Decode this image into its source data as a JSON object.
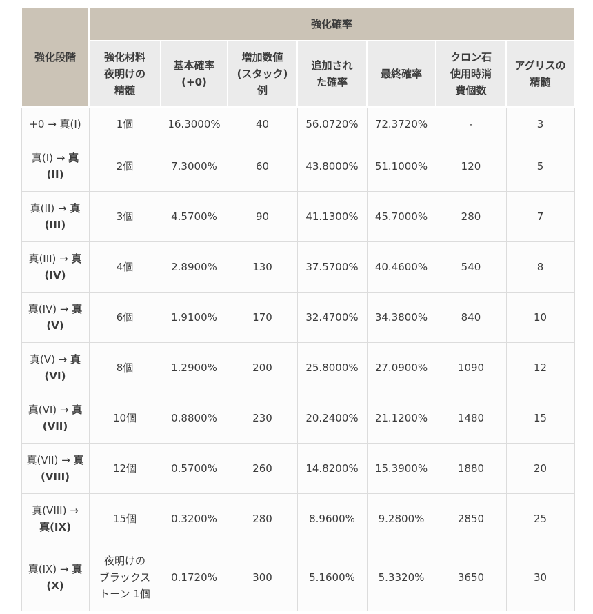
{
  "table": {
    "stage_header": "強化段階",
    "group_header": "強化確率",
    "sub_headers": [
      "強化材料\n夜明けの\n精髄",
      "基本確率\n(+0)",
      "増加数値\n(スタック)\n例",
      "追加され\nた確率",
      "最終確率",
      "クロン石\n使用時消\n費個数",
      "アグリスの\n精髄"
    ],
    "column_keys": [
      "material",
      "base_rate",
      "stack_example",
      "added_rate",
      "final_rate",
      "cron_stones",
      "agris"
    ],
    "rows": [
      {
        "stage_from": "+0 →",
        "stage_to": "真(I)",
        "stage_to_bold": false,
        "material": "1個",
        "base_rate": "16.3000%",
        "stack_example": "40",
        "added_rate": "56.0720%",
        "final_rate": "72.3720%",
        "cron_stones": "-",
        "agris": "3"
      },
      {
        "stage_from": "真(I) →",
        "stage_to": "真(II)",
        "stage_to_bold": true,
        "material": "2個",
        "base_rate": "7.3000%",
        "stack_example": "60",
        "added_rate": "43.8000%",
        "final_rate": "51.1000%",
        "cron_stones": "120",
        "agris": "5"
      },
      {
        "stage_from": "真(II) →",
        "stage_to": "真(III)",
        "stage_to_bold": true,
        "material": "3個",
        "base_rate": "4.5700%",
        "stack_example": "90",
        "added_rate": "41.1300%",
        "final_rate": "45.7000%",
        "cron_stones": "280",
        "agris": "7"
      },
      {
        "stage_from": "真(III) →",
        "stage_to": "真(IV)",
        "stage_to_bold": true,
        "material": "4個",
        "base_rate": "2.8900%",
        "stack_example": "130",
        "added_rate": "37.5700%",
        "final_rate": "40.4600%",
        "cron_stones": "540",
        "agris": "8"
      },
      {
        "stage_from": "真(IV) →",
        "stage_to": "真(V)",
        "stage_to_bold": true,
        "material": "6個",
        "base_rate": "1.9100%",
        "stack_example": "170",
        "added_rate": "32.4700%",
        "final_rate": "34.3800%",
        "cron_stones": "840",
        "agris": "10"
      },
      {
        "stage_from": "真(V) →",
        "stage_to": "真(VI)",
        "stage_to_bold": true,
        "material": "8個",
        "base_rate": "1.2900%",
        "stack_example": "200",
        "added_rate": "25.8000%",
        "final_rate": "27.0900%",
        "cron_stones": "1090",
        "agris": "12"
      },
      {
        "stage_from": "真(VI) →",
        "stage_to": "真(VII)",
        "stage_to_bold": true,
        "material": "10個",
        "base_rate": "0.8800%",
        "stack_example": "230",
        "added_rate": "20.2400%",
        "final_rate": "21.1200%",
        "cron_stones": "1480",
        "agris": "15"
      },
      {
        "stage_from": "真(VII) →",
        "stage_to": "真(VIII)",
        "stage_to_bold": true,
        "material": "12個",
        "base_rate": "0.5700%",
        "stack_example": "260",
        "added_rate": "14.8200%",
        "final_rate": "15.3900%",
        "cron_stones": "1880",
        "agris": "20"
      },
      {
        "stage_from": "真(VIII) →",
        "stage_to": "真(IX)",
        "stage_to_bold": true,
        "material": "15個",
        "base_rate": "0.3200%",
        "stack_example": "280",
        "added_rate": "8.9600%",
        "final_rate": "9.2800%",
        "cron_stones": "2850",
        "agris": "25"
      },
      {
        "stage_from": "真(IX) →",
        "stage_to": "真(X)",
        "stage_to_bold": true,
        "material": "夜明けの\nブラックス\nトーン 1個",
        "base_rate": "0.1720%",
        "stack_example": "300",
        "added_rate": "5.1600%",
        "final_rate": "5.3320%",
        "cron_stones": "3650",
        "agris": "30"
      }
    ]
  },
  "colors": {
    "header_bg": "#cbc3b6",
    "subheader_bg": "#ebebeb",
    "stage_column_bg": "#f0f0f0",
    "cell_bg": "#fcfcfc",
    "border": "#dcdcdc",
    "text": "#3b3b3b"
  }
}
